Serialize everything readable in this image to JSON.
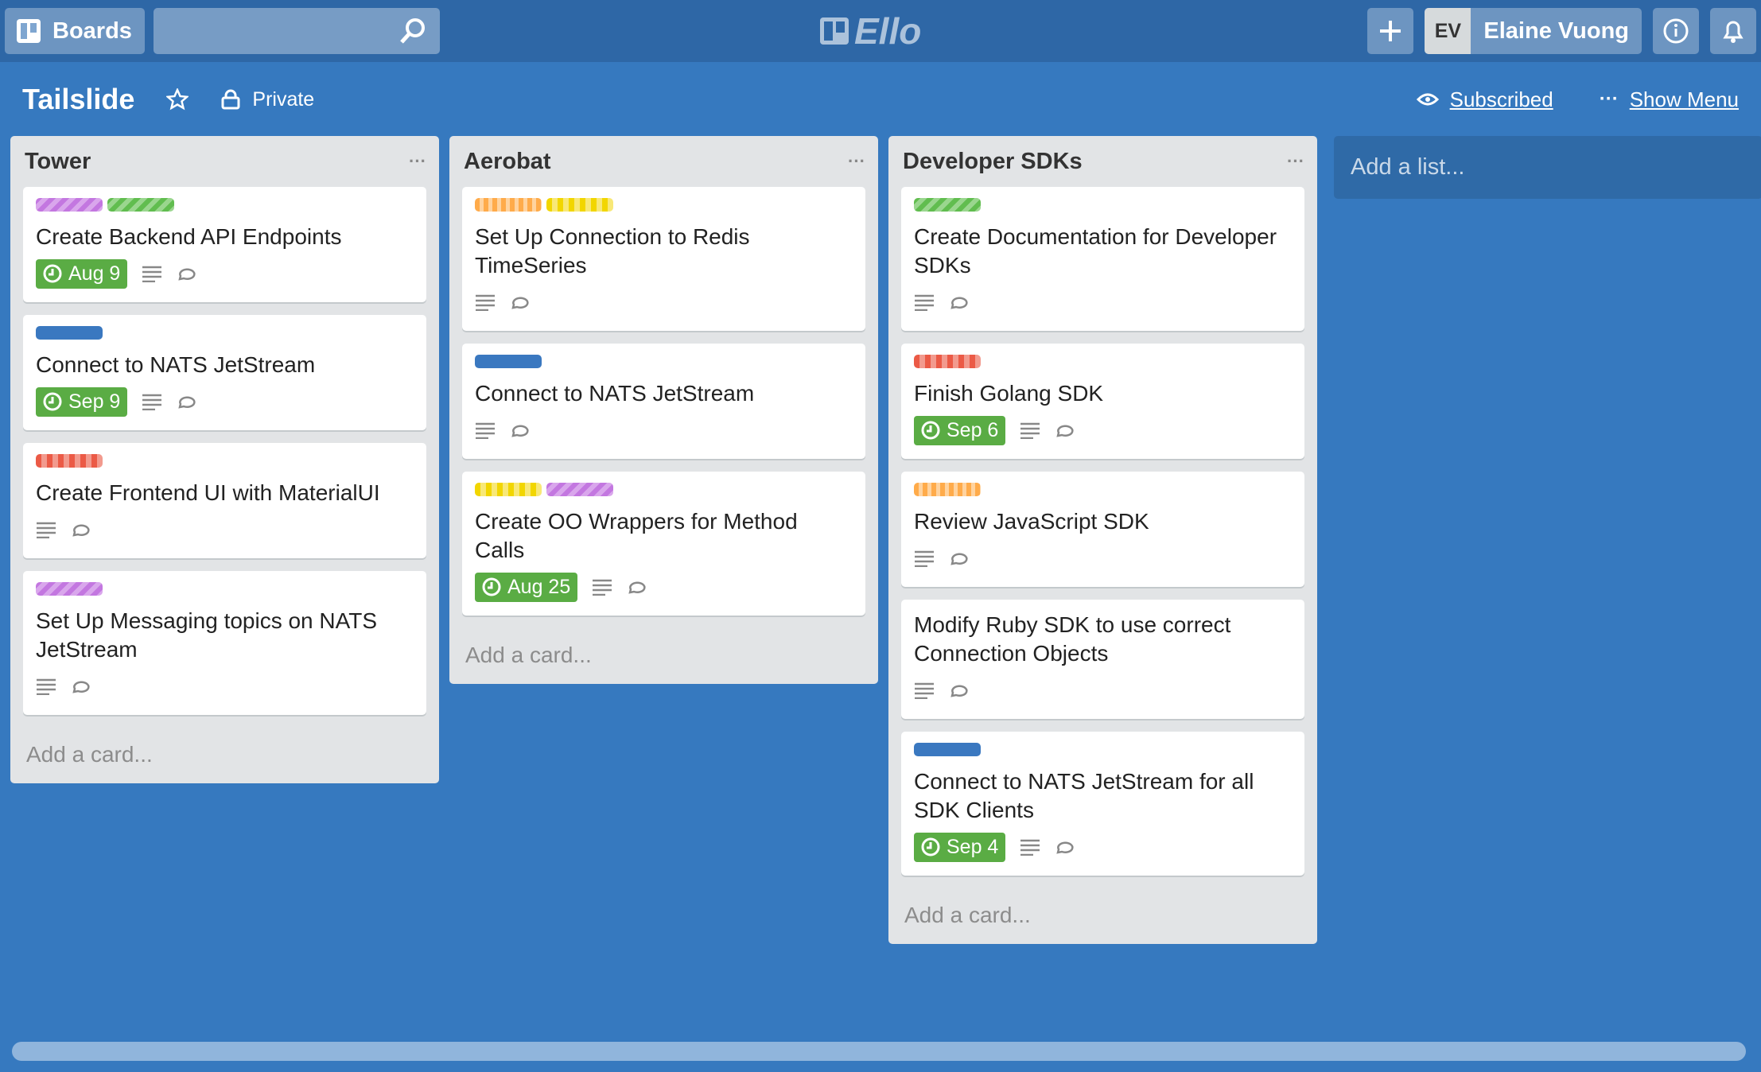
{
  "header": {
    "boards": "Boards",
    "logo": "Ello",
    "initials": "EV",
    "user": "Elaine Vuong"
  },
  "board": {
    "title": "Tailslide",
    "visibility": "Private",
    "subscribed": "Subscribed",
    "menu": "Show Menu",
    "add_list": "Add a list..."
  },
  "lists": [
    {
      "name": "Tower",
      "add_card": "Add a card...",
      "cards": [
        {
          "title": "Create Backend API Endpoints",
          "labels": [
            "purple",
            "green"
          ],
          "due": "Aug 9"
        },
        {
          "title": "Connect to NATS JetStream",
          "labels": [
            "blue"
          ],
          "due": "Sep 9"
        },
        {
          "title": "Create Frontend UI with MaterialUI",
          "labels": [
            "red"
          ]
        },
        {
          "title": "Set Up Messaging topics on NATS JetStream",
          "labels": [
            "purple"
          ]
        }
      ]
    },
    {
      "name": "Aerobat",
      "add_card": "Add a card...",
      "cards": [
        {
          "title": "Set Up Connection to Redis TimeSeries",
          "labels": [
            "orange",
            "yellow"
          ]
        },
        {
          "title": "Connect to NATS JetStream",
          "labels": [
            "blue"
          ]
        },
        {
          "title": "Create OO Wrappers for Method Calls",
          "labels": [
            "yellow",
            "purple"
          ],
          "due": "Aug 25"
        }
      ]
    },
    {
      "name": "Developer SDKs",
      "add_card": "Add a card...",
      "cards": [
        {
          "title": "Create Documentation for Developer SDKs",
          "labels": [
            "green"
          ]
        },
        {
          "title": "Finish Golang SDK",
          "labels": [
            "red"
          ],
          "due": "Sep 6"
        },
        {
          "title": "Review JavaScript SDK",
          "labels": [
            "orange"
          ]
        },
        {
          "title": "Modify Ruby SDK to use correct Connection Objects",
          "labels": []
        },
        {
          "title": "Connect to NATS JetStream for all SDK Clients",
          "labels": [
            "blue"
          ],
          "due": "Sep 4"
        }
      ]
    }
  ]
}
